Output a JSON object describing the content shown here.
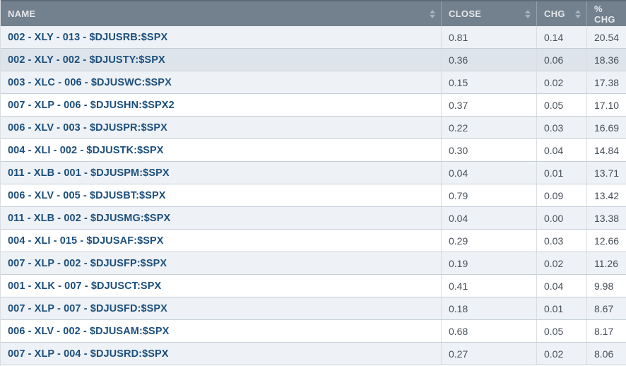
{
  "table": {
    "columns": [
      {
        "key": "name",
        "label": "NAME",
        "sortable": true
      },
      {
        "key": "close",
        "label": "CLOSE",
        "sortable": true
      },
      {
        "key": "chg",
        "label": "CHG",
        "sortable": true
      },
      {
        "key": "pct_chg",
        "label": "% CHG",
        "sortable": false
      }
    ],
    "highlighted_row_index": 1,
    "rows": [
      {
        "name": "002 - XLY - 013 - $DJUSRB:$SPX",
        "close": "0.81",
        "chg": "0.14",
        "pct_chg": "20.54"
      },
      {
        "name": "002 - XLY - 002 - $DJUSTY:$SPX",
        "close": "0.36",
        "chg": "0.06",
        "pct_chg": "18.36"
      },
      {
        "name": "003 - XLC - 006 - $DJUSWC:$SPX",
        "close": "0.15",
        "chg": "0.02",
        "pct_chg": "17.38"
      },
      {
        "name": "007 - XLP - 006 - $DJUSHN:$SPX2",
        "close": "0.37",
        "chg": "0.05",
        "pct_chg": "17.10"
      },
      {
        "name": "006 - XLV - 003 - $DJUSPR:$SPX",
        "close": "0.22",
        "chg": "0.03",
        "pct_chg": "16.69"
      },
      {
        "name": "004 - XLI - 002 - $DJUSTK:$SPX",
        "close": "0.30",
        "chg": "0.04",
        "pct_chg": "14.84"
      },
      {
        "name": "011 - XLB - 001 - $DJUSPM:$SPX",
        "close": "0.04",
        "chg": "0.01",
        "pct_chg": "13.71"
      },
      {
        "name": "006 - XLV - 005 - $DJUSBT:$SPX",
        "close": "0.79",
        "chg": "0.09",
        "pct_chg": "13.42"
      },
      {
        "name": "011 - XLB - 002 - $DJUSMG:$SPX",
        "close": "0.04",
        "chg": "0.00",
        "pct_chg": "13.38"
      },
      {
        "name": "004 - XLI - 015 - $DJUSAF:$SPX",
        "close": "0.29",
        "chg": "0.03",
        "pct_chg": "12.66"
      },
      {
        "name": "007 - XLP - 002 - $DJUSFP:$SPX",
        "close": "0.19",
        "chg": "0.02",
        "pct_chg": "11.26"
      },
      {
        "name": "001 - XLK - 007 - $DJUSCT:SPX",
        "close": "0.41",
        "chg": "0.04",
        "pct_chg": "9.98"
      },
      {
        "name": "007 - XLP - 007 - $DJUSFD:$SPX",
        "close": "0.18",
        "chg": "0.01",
        "pct_chg": "8.67"
      },
      {
        "name": "006 - XLV - 002 - $DJUSAM:$SPX",
        "close": "0.68",
        "chg": "0.05",
        "pct_chg": "8.17"
      },
      {
        "name": "007 - XLP - 004 - $DJUSRD:$SPX",
        "close": "0.27",
        "chg": "0.02",
        "pct_chg": "8.06"
      }
    ]
  },
  "colors": {
    "header_bg": "#73808d",
    "header_top": "#5d6b79",
    "header_border": "#95a0ab",
    "header_text": "#e4e7ea",
    "sort_icon": "#a7b2bc",
    "row_stripe": "#eef2f6",
    "row_alt": "#ffffff",
    "row_highlight": "#dde4eb",
    "row_border": "#c7cfd6",
    "cell_border": "#d9dee3",
    "name_text": "#1c4f7d",
    "value_text": "#474f58"
  }
}
